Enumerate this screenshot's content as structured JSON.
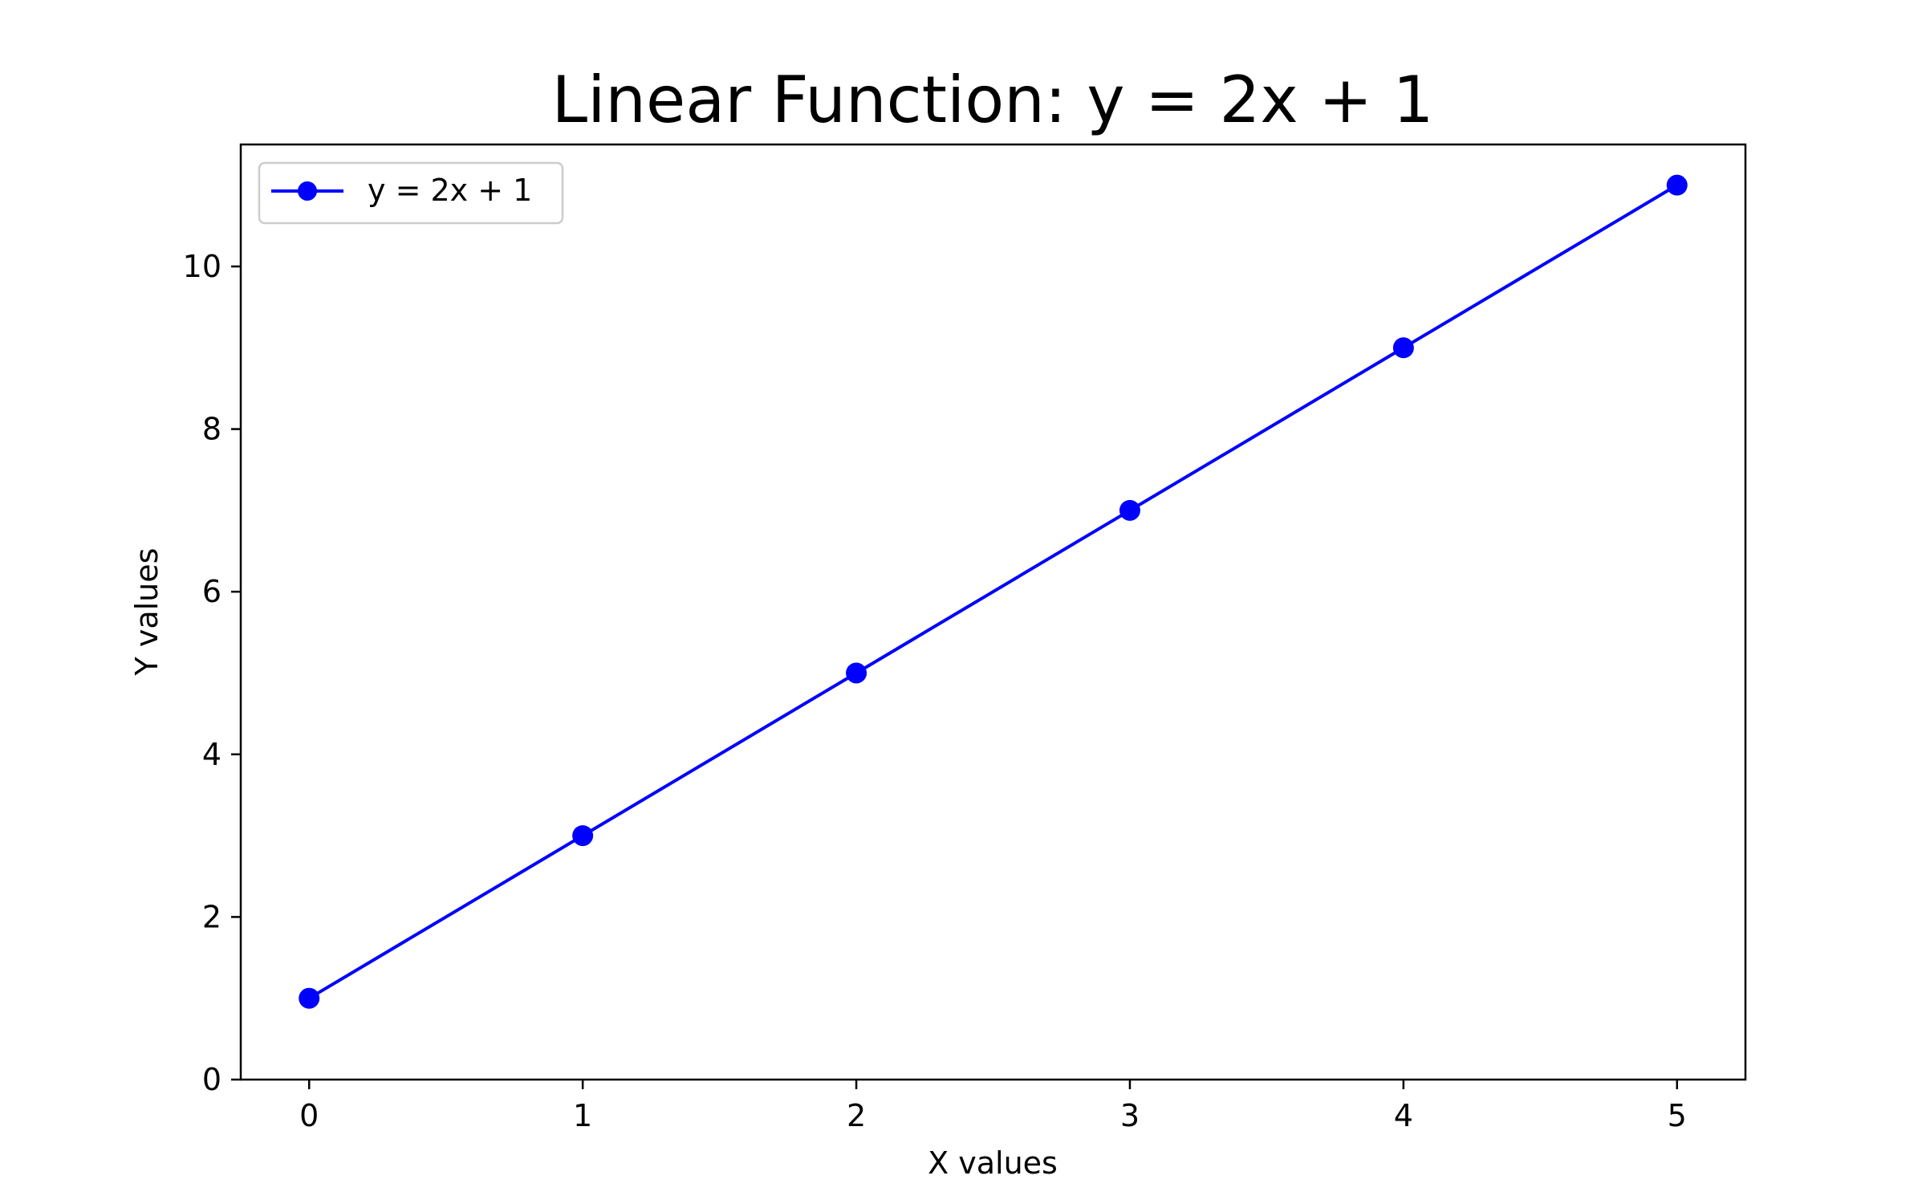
{
  "chart_data": {
    "type": "line",
    "title": "Linear Function: y = 2x + 1",
    "xlabel": "X values",
    "ylabel": "Y values",
    "x": [
      0,
      1,
      2,
      3,
      4,
      5
    ],
    "series": [
      {
        "name": "y = 2x + 1",
        "values": [
          1,
          3,
          5,
          7,
          9,
          11
        ],
        "color": "#0000ff",
        "marker": "circle"
      }
    ],
    "xlim": [
      -0.25,
      5.25
    ],
    "ylim": [
      0,
      11.5
    ],
    "xticks": [
      0,
      1,
      2,
      3,
      4,
      5
    ],
    "yticks": [
      0,
      2,
      4,
      6,
      8,
      10
    ],
    "grid": false,
    "legend_position": "upper-left"
  }
}
